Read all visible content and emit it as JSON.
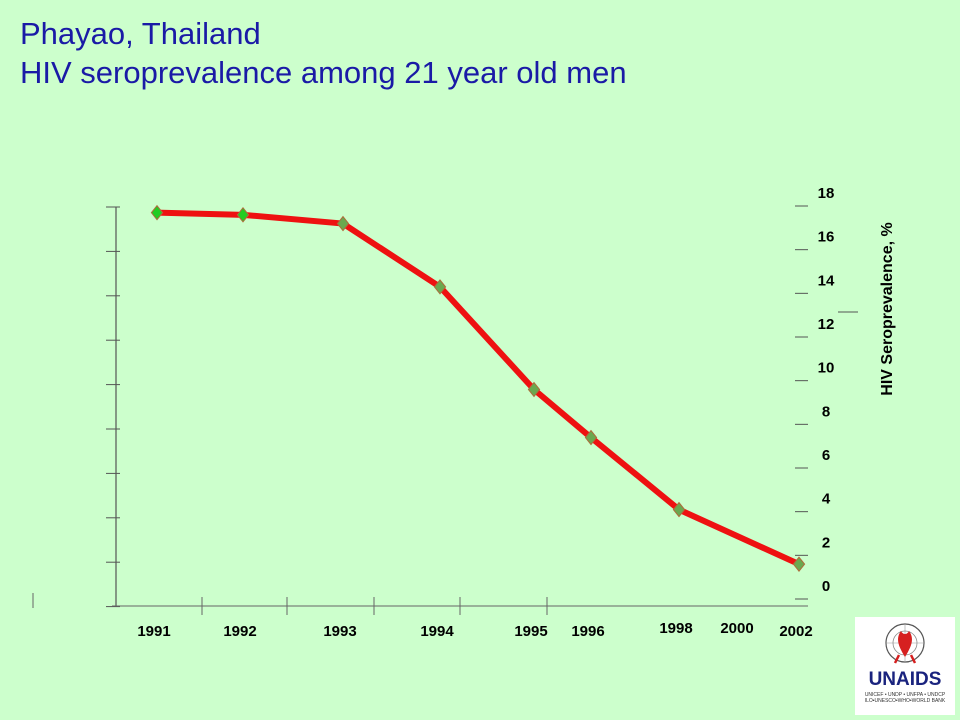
{
  "slide": {
    "title_line1": "Phayao, Thailand",
    "title_line2": "HIV seroprevalence among 21 year old men"
  },
  "logo": {
    "word": "UNAIDS",
    "sub_line1": "UNICEF • UNDP • UNFPA • UNDCP",
    "sub_line2": "ILO•UNESCO•WHO•WORLD BANK"
  },
  "chart_data": {
    "type": "line",
    "title": "",
    "xlabel": "",
    "ylabel": "HIV Seroprevalence, %",
    "categories": [
      "1991",
      "1992",
      "1993",
      "1994",
      "1995",
      "1996",
      "1998",
      "2000",
      "2002"
    ],
    "series": [
      {
        "values": [
          17.1,
          17.0,
          16.6,
          13.7,
          9.0,
          6.8,
          3.5,
          null,
          1.0
        ],
        "color": "#ee1111",
        "marker_color": "#6aa84f"
      }
    ],
    "plotted_x": [
      "1991",
      "1992",
      "1993",
      "1994",
      "1995",
      "1996",
      "1998",
      "2002"
    ],
    "plotted_y": [
      17.1,
      17.0,
      16.6,
      13.7,
      9.0,
      6.8,
      3.5,
      1.0
    ],
    "yticks": [
      0,
      2,
      4,
      6,
      8,
      10,
      12,
      14,
      16,
      18
    ],
    "ylim": [
      0,
      18
    ],
    "y_axis_side": "right",
    "grid": false,
    "legend": "none"
  }
}
